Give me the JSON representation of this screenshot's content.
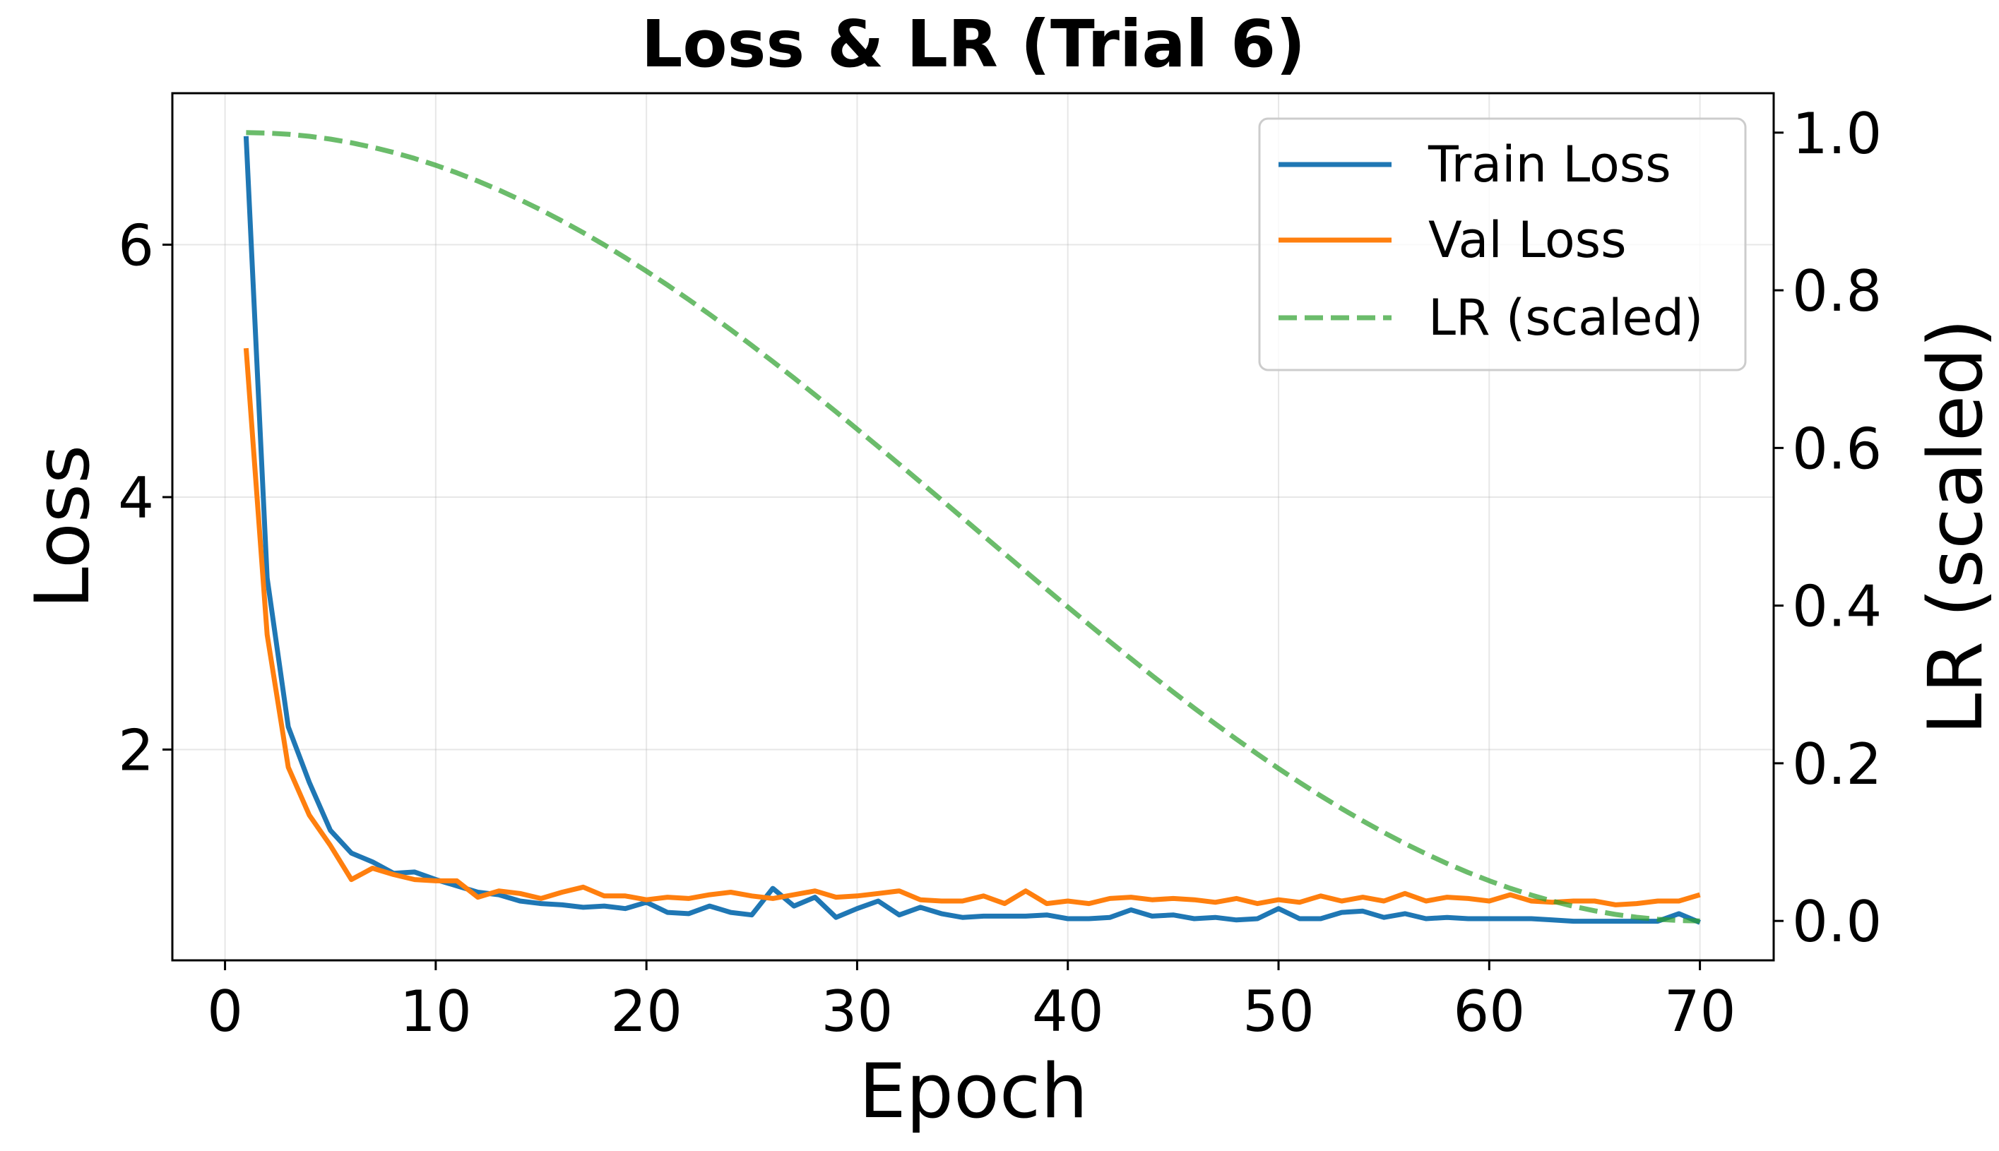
{
  "chart_data": {
    "type": "line",
    "title": "Loss & LR (Trial 6)",
    "xlabel": "Epoch",
    "ylabel": "Loss",
    "y2label": "LR (scaled)",
    "xlim": [
      -2.5,
      73.5
    ],
    "ylim": [
      0.33,
      7.2
    ],
    "y2lim": [
      -0.05,
      1.05
    ],
    "xticks": [
      0,
      10,
      20,
      30,
      40,
      50,
      60,
      70
    ],
    "yticks": [
      2,
      4,
      6
    ],
    "y2ticks": [
      0.0,
      0.2,
      0.4,
      0.6,
      0.8,
      1.0
    ],
    "y2tick_labels": [
      "0.0",
      "0.2",
      "0.4",
      "0.6",
      "0.8",
      "1.0"
    ],
    "grid": true,
    "legend_position": "top-right",
    "x": [
      1,
      2,
      3,
      4,
      5,
      6,
      7,
      8,
      9,
      10,
      11,
      12,
      13,
      14,
      15,
      16,
      17,
      18,
      19,
      20,
      21,
      22,
      23,
      24,
      25,
      26,
      27,
      28,
      29,
      30,
      31,
      32,
      33,
      34,
      35,
      36,
      37,
      38,
      39,
      40,
      41,
      42,
      43,
      44,
      45,
      46,
      47,
      48,
      49,
      50,
      51,
      52,
      53,
      54,
      55,
      56,
      57,
      58,
      59,
      60,
      61,
      62,
      63,
      64,
      65,
      66,
      67,
      68,
      69,
      70
    ],
    "series": [
      {
        "name": "Train Loss",
        "axis": "left",
        "color": "#1f77b4",
        "style": "solid",
        "values": [
          6.86,
          3.36,
          2.18,
          1.74,
          1.36,
          1.18,
          1.11,
          1.02,
          1.03,
          0.97,
          0.92,
          0.87,
          0.85,
          0.8,
          0.78,
          0.77,
          0.75,
          0.76,
          0.74,
          0.79,
          0.71,
          0.7,
          0.76,
          0.71,
          0.69,
          0.9,
          0.76,
          0.83,
          0.67,
          0.74,
          0.8,
          0.69,
          0.75,
          0.7,
          0.67,
          0.68,
          0.68,
          0.68,
          0.69,
          0.66,
          0.66,
          0.67,
          0.73,
          0.68,
          0.69,
          0.66,
          0.67,
          0.65,
          0.66,
          0.74,
          0.66,
          0.66,
          0.71,
          0.72,
          0.67,
          0.7,
          0.66,
          0.67,
          0.66,
          0.66,
          0.66,
          0.66,
          0.65,
          0.64,
          0.64,
          0.64,
          0.64,
          0.64,
          0.7,
          0.63
        ]
      },
      {
        "name": "Val Loss",
        "axis": "left",
        "color": "#ff7f0e",
        "style": "solid",
        "values": [
          5.18,
          2.91,
          1.86,
          1.48,
          1.24,
          0.97,
          1.06,
          1.01,
          0.97,
          0.96,
          0.96,
          0.83,
          0.88,
          0.86,
          0.82,
          0.87,
          0.91,
          0.84,
          0.84,
          0.81,
          0.83,
          0.82,
          0.85,
          0.87,
          0.84,
          0.82,
          0.85,
          0.88,
          0.83,
          0.84,
          0.86,
          0.88,
          0.81,
          0.8,
          0.8,
          0.84,
          0.78,
          0.88,
          0.78,
          0.8,
          0.78,
          0.82,
          0.83,
          0.81,
          0.82,
          0.81,
          0.79,
          0.82,
          0.78,
          0.81,
          0.79,
          0.84,
          0.8,
          0.83,
          0.8,
          0.86,
          0.8,
          0.83,
          0.82,
          0.8,
          0.85,
          0.8,
          0.79,
          0.8,
          0.8,
          0.77,
          0.78,
          0.8,
          0.8,
          0.85
        ]
      },
      {
        "name": "LR (scaled)",
        "axis": "right",
        "color": "#2ca02c",
        "style": "dashed",
        "lr_schedule": "cosine",
        "lr_range": [
          1.0,
          0.0
        ]
      }
    ]
  }
}
